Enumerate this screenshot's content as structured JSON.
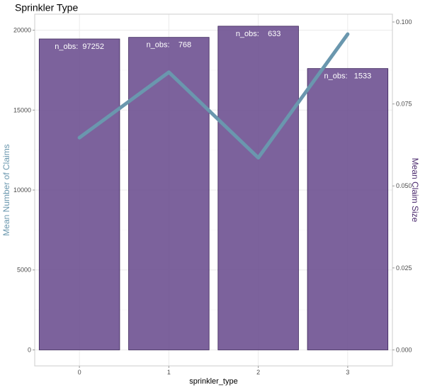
{
  "chart_data": {
    "type": "bar",
    "title": "Sprinkler Type",
    "xlabel": "sprinkler_type",
    "ylabel_left": "Mean Number of Claims",
    "ylabel_right": "Mean Claim Size",
    "categories": [
      "0",
      "1",
      "2",
      "3"
    ],
    "bars": {
      "values": [
        19450,
        19550,
        20250,
        17600
      ],
      "labels": [
        "n_obs:  97252",
        "n_obs:    768",
        "n_obs:    633",
        "n_obs:   1533"
      ],
      "color": "#6a4c8e"
    },
    "line": {
      "values": [
        0.0647,
        0.0847,
        0.0586,
        0.0963
      ],
      "color": "#6a97ae"
    },
    "y_left": {
      "lim": [
        -1000,
        21000
      ],
      "ticks": [
        0,
        5000,
        10000,
        15000,
        20000
      ],
      "labels": [
        "0",
        "5000",
        "10000",
        "15000",
        "20000"
      ]
    },
    "y_right": {
      "lim": [
        0,
        0.1
      ],
      "ticks": [
        0,
        0.025,
        0.05,
        0.075,
        0.1
      ],
      "labels": [
        "0.000",
        "0.025",
        "0.050",
        "0.075",
        "0.100"
      ]
    },
    "colors": {
      "left_axis_label": "#6a97ae",
      "right_axis_label": "#4b2a6e",
      "grid": "#ebebeb",
      "panel_border": "#cccccc"
    },
    "grid": true,
    "legend": "none"
  }
}
